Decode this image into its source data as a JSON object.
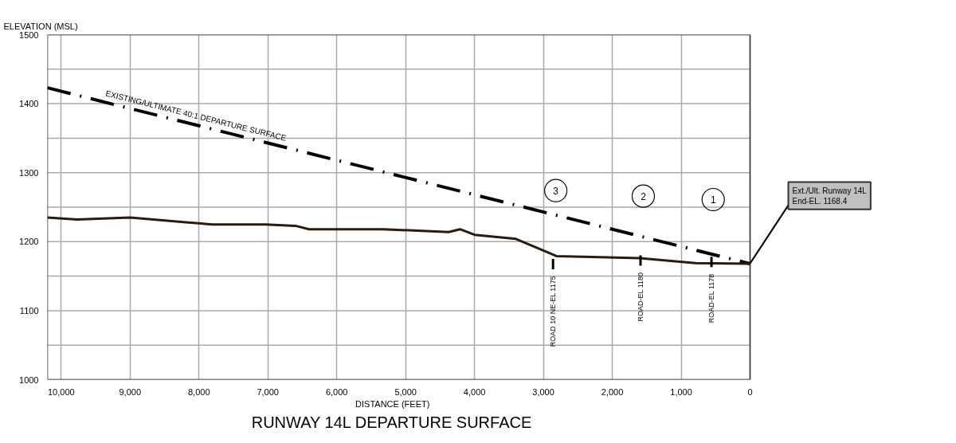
{
  "chart_data": {
    "type": "line",
    "title": "RUNWAY 14L DEPARTURE SURFACE",
    "xlabel": "DISTANCE (FEET)",
    "ylabel": "ELEVATION (MSL)",
    "series": [
      {
        "name": "EXISTING/ULTIMATE 40:1 DEPARTURE SURFACE",
        "color": "#000000",
        "line_style": "dashed",
        "x": [
          10200,
          0
        ],
        "values": [
          1423,
          1168
        ]
      },
      {
        "color": "#2b1a0e",
        "line_style": "solid",
        "x": [
          10200,
          9770,
          9000,
          8190,
          7800,
          7030,
          6600,
          6400,
          5330,
          4375,
          4210,
          4000,
          3400,
          2810,
          1600,
          790,
          0
        ],
        "values": [
          1235,
          1232,
          1235,
          1228,
          1225,
          1225,
          1223,
          1218,
          1218,
          1214,
          1218,
          1210,
          1204,
          1179,
          1176,
          1169,
          1168
        ]
      }
    ],
    "annotations": [
      {
        "text": "ROAD 10 NE-EL 1175",
        "x": 2860,
        "y": 1175
      },
      {
        "text": "ROAD-EL 1180",
        "x": 1590,
        "y": 1180
      },
      {
        "text": "ROAD-EL 1178",
        "x": 560,
        "y": 1178
      },
      {
        "text": "3",
        "x": 2820,
        "y": 1274
      },
      {
        "text": "2",
        "x": 1550,
        "y": 1266
      },
      {
        "text": "1",
        "x": 535,
        "y": 1261
      },
      {
        "text": "Ext./Ult. Runway 14L\nEnd-EL. 1168.4",
        "x": 0,
        "y": 1168.4
      }
    ],
    "xlim": [
      10200,
      0
    ],
    "ylim": [
      1000,
      1500
    ],
    "xticks": [
      {
        "value": 10000,
        "label": "10,000"
      },
      {
        "value": 9000,
        "label": "9,000"
      },
      {
        "value": 8000,
        "label": "8,000"
      },
      {
        "value": 7000,
        "label": "7,000"
      },
      {
        "value": 6000,
        "label": "6,000"
      },
      {
        "value": 5000,
        "label": "5,000"
      },
      {
        "value": 4000,
        "label": "4,000"
      },
      {
        "value": 3000,
        "label": "3,000"
      },
      {
        "value": 2000,
        "label": "2,000"
      },
      {
        "value": 1000,
        "label": "1,000"
      },
      0
    ],
    "yticks": [
      1000,
      {
        "value": 1050,
        "label": null
      },
      1100,
      {
        "value": 1150,
        "label": null
      },
      1200,
      {
        "value": 1250,
        "label": null
      },
      1300,
      {
        "value": 1350,
        "label": null
      },
      1400,
      {
        "value": 1450,
        "label": null
      },
      1500
    ],
    "grid": true,
    "legend": false,
    "marker": "none"
  }
}
